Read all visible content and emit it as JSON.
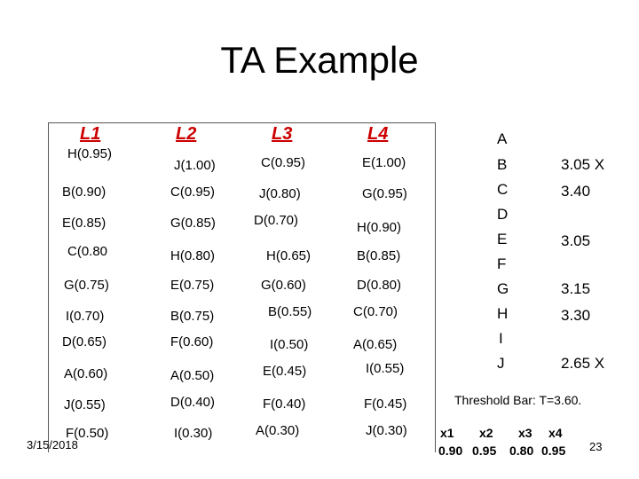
{
  "slide": {
    "title": "TA Example",
    "footer_date": "3/15/2018",
    "page_number": "23"
  },
  "lists": [
    {
      "header": "L1",
      "items": [
        "H(0.95)",
        "B(0.90)",
        "E(0.85)",
        "C(0.80",
        "G(0.75)",
        "I(0.70)",
        "D(0.65)",
        "A(0.60)",
        "J(0.55)",
        "F(0.50)"
      ]
    },
    {
      "header": "L2",
      "items": [
        "J(1.00)",
        "C(0.95)",
        "G(0.85)",
        "H(0.80)",
        "E(0.75)",
        "B(0.75)",
        "F(0.60)",
        "A(0.50)",
        "D(0.40)",
        "I(0.30)"
      ]
    },
    {
      "header": "L3",
      "items": [
        "C(0.95)",
        "J(0.80)",
        "D(0.70)",
        "H(0.65)",
        "G(0.60)",
        "B(0.55)",
        "I(0.50)",
        "E(0.45)",
        "F(0.40)",
        "A(0.30)"
      ]
    },
    {
      "header": "L4",
      "items": [
        "E(1.00)",
        "G(0.95)",
        "H(0.90)",
        "B(0.85)",
        "D(0.80)",
        "C(0.70)",
        "A(0.65)",
        "I(0.55)",
        "F(0.45)",
        "J(0.30)"
      ]
    }
  ],
  "results": [
    {
      "letter": "A",
      "value": ""
    },
    {
      "letter": "B",
      "value": "3.05 X"
    },
    {
      "letter": "C",
      "value": "3.40"
    },
    {
      "letter": "D",
      "value": ""
    },
    {
      "letter": "E",
      "value": "3.05"
    },
    {
      "letter": "F",
      "value": ""
    },
    {
      "letter": "G",
      "value": "3.15"
    },
    {
      "letter": "H",
      "value": "3.30"
    },
    {
      "letter": "I",
      "value": ""
    },
    {
      "letter": "J",
      "value": "2.65 X"
    }
  ],
  "threshold": {
    "label": "Threshold Bar: T=3.60.",
    "x_labels": [
      "x1",
      "x2",
      "x3",
      "x4"
    ],
    "x_values": [
      "0.90",
      "0.95",
      "0.80",
      "0.95"
    ]
  }
}
